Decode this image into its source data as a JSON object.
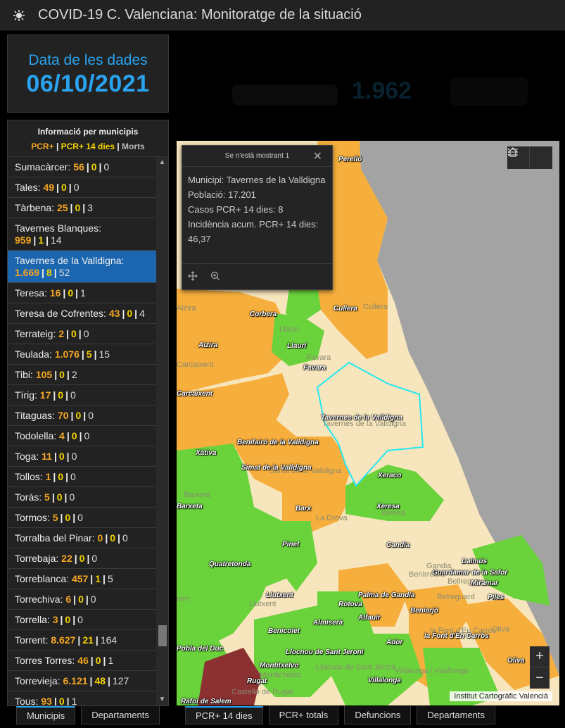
{
  "header": {
    "title": "COVID-19 C. Valenciana: Monitoratge de la situació",
    "logo_icon": "virus-icon"
  },
  "date": {
    "label": "Data de les dades",
    "value": "06/10/2021"
  },
  "background_total": "1.962",
  "list": {
    "title": "Informació per municipis",
    "legend": {
      "pcr": "PCR+",
      "sep1": " | ",
      "pcr14": "PCR+ 14 dies",
      "sep2": " | ",
      "morts": "Morts"
    },
    "rows": [
      {
        "name": "Sumacàrcer:",
        "a": "56",
        "b": "0",
        "c": "0"
      },
      {
        "name": "Tales:",
        "a": "49",
        "b": "0",
        "c": "0"
      },
      {
        "name": "Tàrbena:",
        "a": "25",
        "b": "0",
        "c": "3"
      },
      {
        "name": "Tavernes Blanques:",
        "a": "959",
        "b": "1",
        "c": "14"
      },
      {
        "name": "Tavernes de la Valldigna:",
        "a": "1.669",
        "b": "8",
        "c": "52",
        "selected": true
      },
      {
        "name": "Teresa:",
        "a": "16",
        "b": "0",
        "c": "1"
      },
      {
        "name": "Teresa de Cofrentes:",
        "a": "43",
        "b": "0",
        "c": "4"
      },
      {
        "name": "Terrateig:",
        "a": "2",
        "b": "0",
        "c": "0"
      },
      {
        "name": "Teulada:",
        "a": "1.076",
        "b": "5",
        "c": "15"
      },
      {
        "name": "Tibi:",
        "a": "105",
        "b": "0",
        "c": "2"
      },
      {
        "name": "Tírig:",
        "a": "17",
        "b": "0",
        "c": "0"
      },
      {
        "name": "Titaguas:",
        "a": "70",
        "b": "0",
        "c": "0"
      },
      {
        "name": "Todolella:",
        "a": "4",
        "b": "0",
        "c": "0"
      },
      {
        "name": "Toga:",
        "a": "11",
        "b": "0",
        "c": "0"
      },
      {
        "name": "Tollos:",
        "a": "1",
        "b": "0",
        "c": "0"
      },
      {
        "name": "Torás:",
        "a": "5",
        "b": "0",
        "c": "0"
      },
      {
        "name": "Tormos:",
        "a": "5",
        "b": "0",
        "c": "0"
      },
      {
        "name": "Torralba del Pinar:",
        "a": "0",
        "b": "0",
        "c": "0"
      },
      {
        "name": "Torrebaja:",
        "a": "22",
        "b": "0",
        "c": "0"
      },
      {
        "name": "Torreblanca:",
        "a": "457",
        "b": "1",
        "c": "5"
      },
      {
        "name": "Torrechiva:",
        "a": "6",
        "b": "0",
        "c": "0"
      },
      {
        "name": "Torrella:",
        "a": "3",
        "b": "0",
        "c": "0"
      },
      {
        "name": "Torrent:",
        "a": "8.627",
        "b": "21",
        "c": "164"
      },
      {
        "name": "Torres Torres:",
        "a": "46",
        "b": "0",
        "c": "1"
      },
      {
        "name": "Torrevieja:",
        "a": "6.121",
        "b": "48",
        "c": "127"
      },
      {
        "name": "Tous:",
        "a": "93",
        "b": "0",
        "c": "1"
      }
    ]
  },
  "left_tabs": [
    "Municipis",
    "Departaments"
  ],
  "right_tabs": [
    "PCR+ 14 dies",
    "PCR+ totals",
    "Defuncions",
    "Departaments"
  ],
  "popup": {
    "header": "Se n'està mostrant 1",
    "lines": [
      "Municipi: Tavernes de la Valldigna",
      "Població: 17.201",
      "Casos PCR+ 14 dies: 8",
      "Incidència acum. PCR+ 14 dies: 46,37"
    ]
  },
  "map": {
    "attribution": "Institut Cartogràfic Valencià",
    "zoom_in": "+",
    "zoom_out": "−",
    "labels": [
      "Perelló",
      "Corbera",
      "Cullera",
      "Alzira",
      "Llaurí",
      "Favara",
      "Carcaixent",
      "Tavernes de la Valldigna",
      "Benifairó de la Valldigna",
      "Xàtiva",
      "Simat de la Valldigna",
      "Xeraco",
      "Barxeta",
      "Barx",
      "Xeresa",
      "Pinet",
      "Candia",
      "Quatretonda",
      "Daimús",
      "Guardamar de la Safor",
      "Miramar",
      "Llutxent",
      "Palma de Gandía",
      "Piles",
      "Ròtova",
      "Beniarjó",
      "Almiserà",
      "Alfauir",
      "Benicolet",
      "la Font d'En Carròs",
      "Ador",
      "Pobla del Duc",
      "Llocnou de Sant Jeroni",
      "Oliva",
      "Montitxelvo",
      "Rugat",
      "Villalonga",
      "Ràfol de Salem"
    ],
    "ghost_labels": [
      "Cullera",
      "Alzira",
      "Llaurí",
      "Favara",
      "Carcaixent",
      "Tavernes de la Valldigna",
      "Simat de la Valldigna",
      "Barxeta",
      "La Drova",
      "Xeresa",
      "Gandia",
      "Belreguard",
      "la Font d'En Carròs",
      "Oliva",
      "Llutxent",
      "Montichelvo",
      "Llocnou de Sant Jeroni",
      "Villalonga / Vilallonga",
      "Castelló de Rugat",
      "Benirredrà",
      "Bellreguard",
      "nim"
    ]
  }
}
